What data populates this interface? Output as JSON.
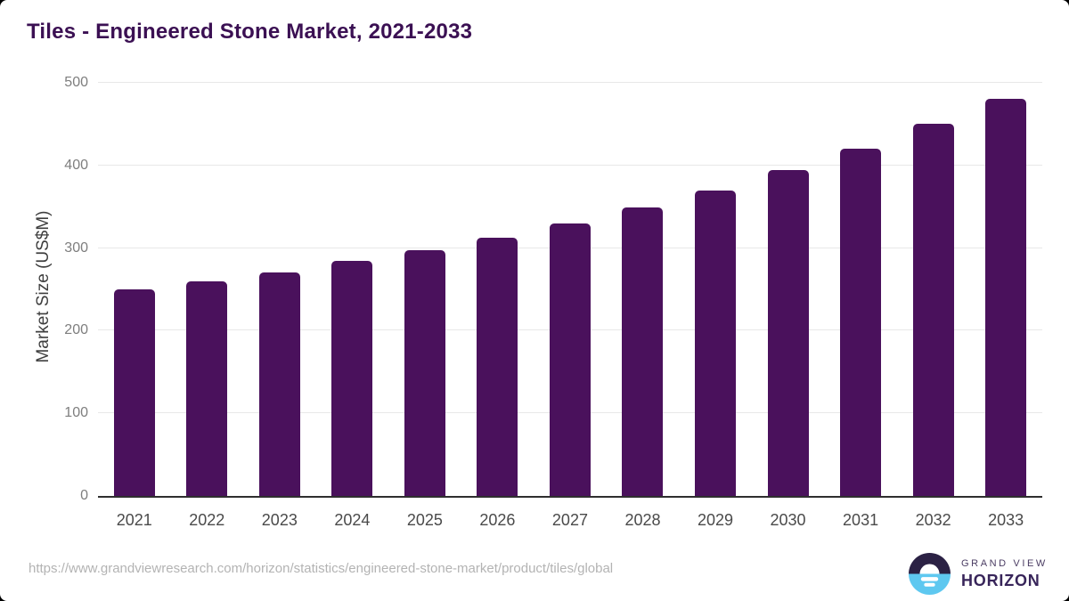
{
  "page": {
    "source_url": "https://www.grandviewresearch.com/horizon/statistics/engineered-stone-market/product/tiles/global",
    "logo": {
      "line1": "GRAND VIEW",
      "line2": "HORIZON"
    }
  },
  "colors": {
    "bar": "#4a115c",
    "title": "#3b1053",
    "axis_line": "#2f2f2f",
    "gridline": "#e8e8e8",
    "y_tick_text": "#7e7e7e",
    "x_tick_text": "#4a4a4a",
    "axis_title_text": "#3e3e3e",
    "url_text": "#b3b3b3",
    "logo_dark": "#2b2144",
    "logo_blue": "#5ec8f0",
    "logo_text_primary": "#38255a",
    "logo_text_secondary": "#4b3d63"
  },
  "chart_data": {
    "type": "bar",
    "title": "Tiles - Engineered Stone Market, 2021-2033",
    "categories": [
      "2021",
      "2022",
      "2023",
      "2024",
      "2025",
      "2026",
      "2027",
      "2028",
      "2029",
      "2030",
      "2031",
      "2032",
      "2033"
    ],
    "values": [
      250,
      260,
      271,
      284,
      297,
      313,
      330,
      349,
      370,
      394,
      420,
      450,
      481
    ],
    "xlabel": "",
    "ylabel": "Market Size (US$M)",
    "ylim": [
      0,
      500
    ],
    "yticks": [
      0,
      100,
      200,
      300,
      400,
      500
    ],
    "grid": true,
    "legend": false
  }
}
